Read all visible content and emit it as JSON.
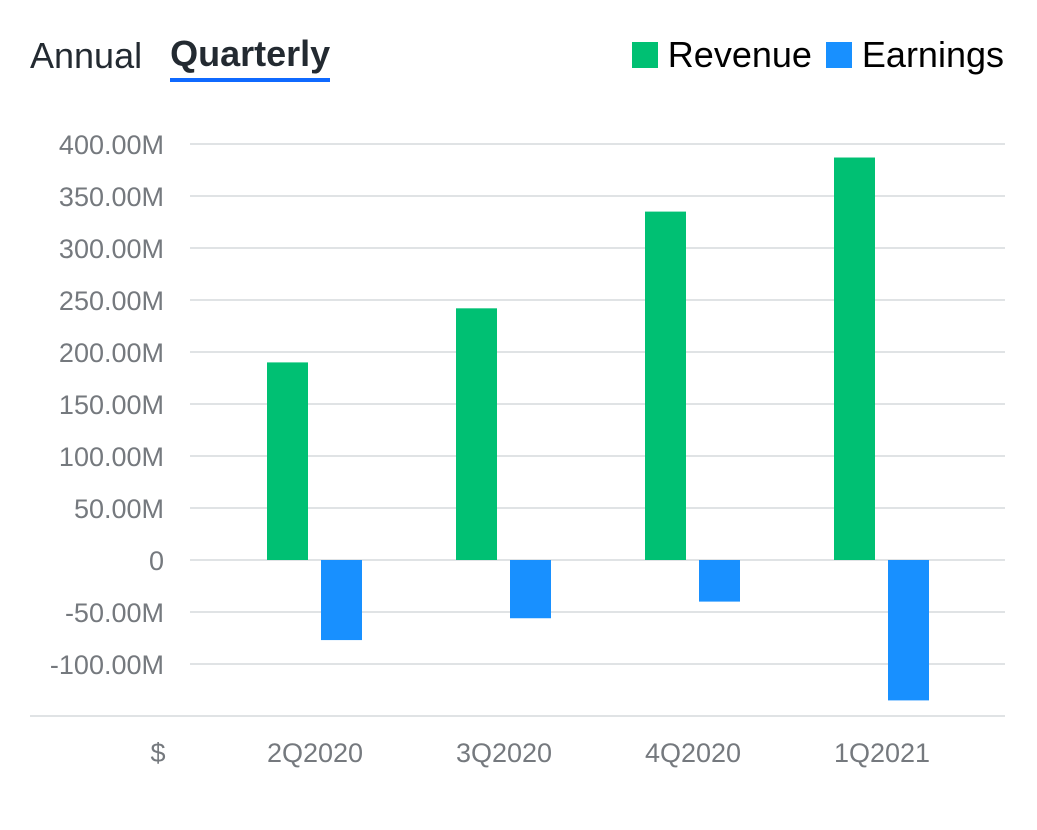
{
  "tabs": {
    "annual_label": "Annual",
    "quarterly_label": "Quarterly",
    "active": "Quarterly"
  },
  "legend": {
    "revenue_label": "Revenue",
    "earnings_label": "Earnings"
  },
  "colors": {
    "revenue": "#00c073",
    "earnings": "#1890ff",
    "tab_underline": "#0f69ff",
    "gridline": "#e0e3e5",
    "axis_text": "#75797e"
  },
  "chart_data": {
    "type": "bar",
    "categories": [
      "2Q2020",
      "3Q2020",
      "4Q2020",
      "1Q2021"
    ],
    "series": [
      {
        "name": "Revenue",
        "values": [
          190,
          242,
          335,
          387
        ]
      },
      {
        "name": "Earnings",
        "values": [
          -77,
          -56,
          -40,
          -135
        ]
      }
    ],
    "unit_label": "$",
    "value_unit": "M",
    "ylim": [
      -150,
      400
    ],
    "yticks": [
      400,
      350,
      300,
      250,
      200,
      150,
      100,
      50,
      0,
      -50,
      -100
    ],
    "ytick_labels": [
      "400.00M",
      "350.00M",
      "300.00M",
      "250.00M",
      "200.00M",
      "150.00M",
      "100.00M",
      "50.00M",
      "0",
      "-50.00M",
      "-100.00M"
    ],
    "grid": true,
    "legend_position": "top-right"
  }
}
